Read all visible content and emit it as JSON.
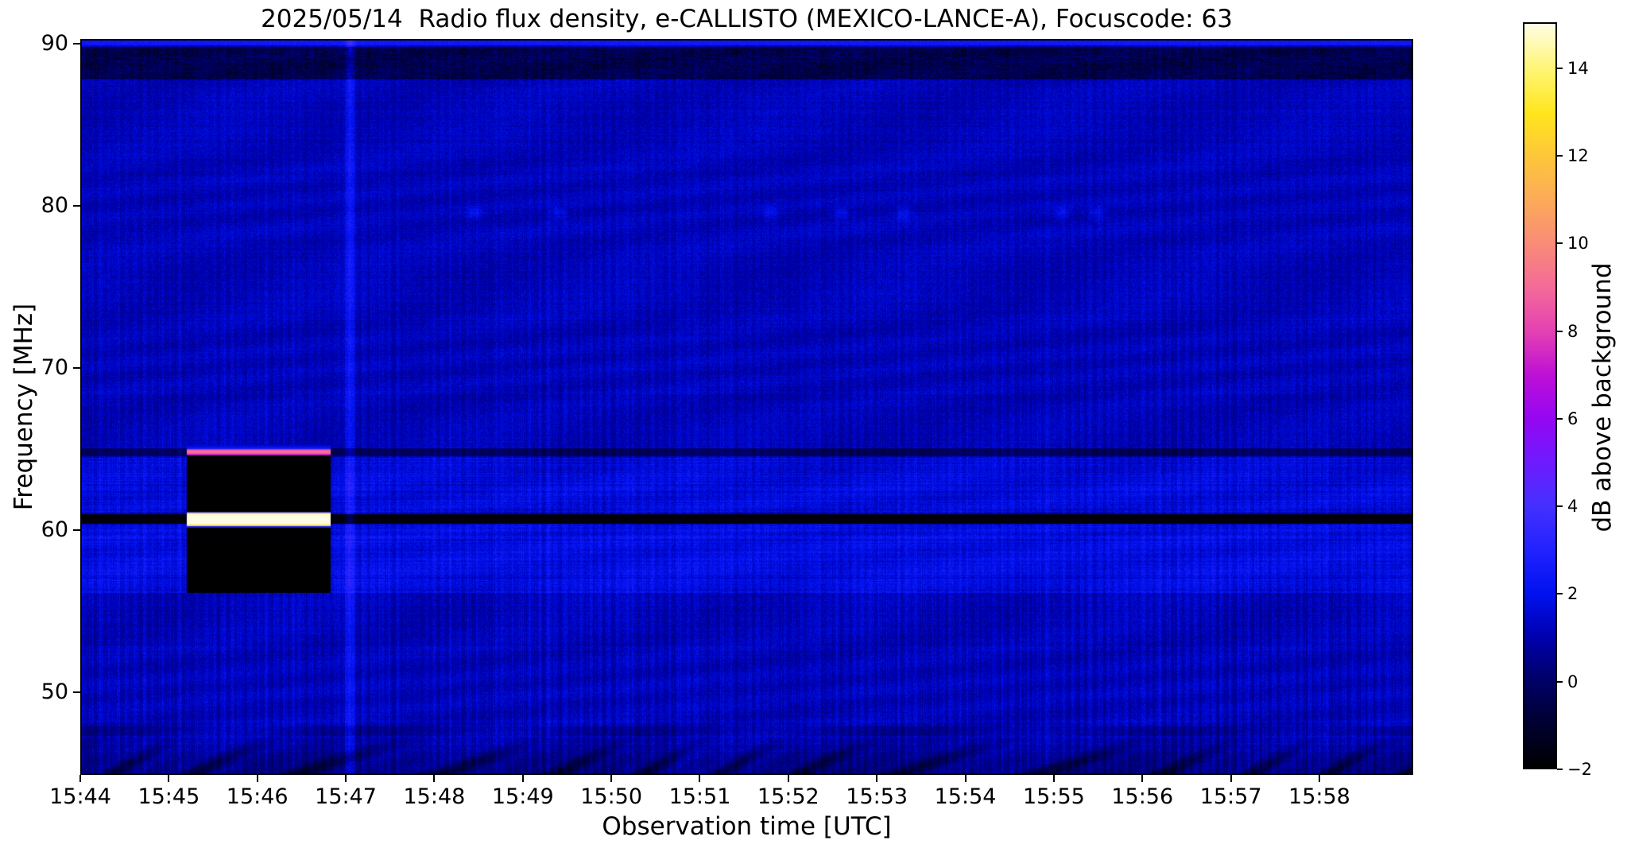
{
  "chart_data": {
    "type": "heatmap",
    "subtype": "radio-spectrogram",
    "title": "2025/05/14  Radio flux density, e-CALLISTO (MEXICO-LANCE-A), Focuscode: 63",
    "date": "2025/05/14",
    "instrument": "e-CALLISTO (MEXICO-LANCE-A)",
    "focuscode": "63",
    "xlabel": "Observation time [UTC]",
    "ylabel": "Frequency [MHz]",
    "x_ticks": [
      "15:44",
      "15:45",
      "15:46",
      "15:47",
      "15:48",
      "15:49",
      "15:50",
      "15:51",
      "15:52",
      "15:53",
      "15:54",
      "15:55",
      "15:56",
      "15:57",
      "15:58"
    ],
    "x_tick_minutes": [
      0,
      1,
      2,
      3,
      4,
      5,
      6,
      7,
      8,
      9,
      10,
      11,
      12,
      13,
      14
    ],
    "x_range_minutes_after_1544": [
      0,
      15.06
    ],
    "y_ticks_mhz": [
      90,
      80,
      70,
      60,
      50
    ],
    "y_range_mhz": [
      44.9,
      90.3
    ],
    "grid": false,
    "background_mean_db": 1.15,
    "colorbar": {
      "label": "dB above background",
      "tick_labels": [
        "14",
        "12",
        "10",
        "8",
        "6",
        "4",
        "2",
        "0",
        "−2"
      ],
      "tick_values": [
        14,
        12,
        10,
        8,
        6,
        4,
        2,
        0,
        -2
      ],
      "range_db": [
        -2,
        15.05
      ],
      "colormap": "gnuplot2",
      "stops": [
        [
          -2,
          "#000000"
        ],
        [
          -1,
          "#000030"
        ],
        [
          0,
          "#000066"
        ],
        [
          1,
          "#0000AE"
        ],
        [
          2,
          "#0012F0"
        ],
        [
          3,
          "#2222FF"
        ],
        [
          4,
          "#4430FF"
        ],
        [
          5,
          "#6E1BFF"
        ],
        [
          6,
          "#9507F2"
        ],
        [
          7,
          "#BE10D6"
        ],
        [
          8,
          "#E441B2"
        ],
        [
          9,
          "#F46A99"
        ],
        [
          10,
          "#F98B77"
        ],
        [
          11,
          "#FCAA59"
        ],
        [
          12,
          "#FEC63A"
        ],
        [
          13,
          "#FFE51D"
        ],
        [
          14,
          "#FFF573"
        ],
        [
          15.05,
          "#FFFDE4"
        ]
      ]
    },
    "features": {
      "calibration_block": {
        "t_min": 1.19,
        "t_max": 2.82,
        "f_min_mhz": 56.08,
        "f_max_mhz": 64.62,
        "level_db": -2
      },
      "bright_line_pink": {
        "t_min": 1.19,
        "t_max": 2.82,
        "f_min_mhz": 64.62,
        "f_max_mhz": 65.01,
        "level_db": 9
      },
      "bright_line_white": {
        "t_min": 1.19,
        "t_max": 2.82,
        "f_min_mhz": 60.28,
        "f_max_mhz": 60.95,
        "level_db": 15
      },
      "blackout_band": {
        "f_min_mhz": 60.35,
        "f_max_mhz": 60.94,
        "level_db": -1.85
      },
      "dark_line_band": {
        "f_min_mhz": 64.55,
        "f_max_mhz": 65.05,
        "delta_db": -1.35
      },
      "bright_band_upper": {
        "f_min_mhz": 61.05,
        "f_max_mhz": 64.45,
        "delta_db": 0.5
      },
      "bright_band_lower": {
        "f_min_mhz": 56.1,
        "f_max_mhz": 60.33,
        "delta_db": 0.65
      },
      "dark_mottled_band": {
        "f_min_mhz": 87.9,
        "f_max_mhz": 89.9,
        "delta_db": -1.5
      },
      "top_edge_bright_mhz": 90.0,
      "vertical_streak": {
        "t_min_at": 3.04,
        "sigma_min": 0.035,
        "delta_db": 1.5
      },
      "low_dark_streak": {
        "f_min_mhz": 47.2,
        "f_max_mhz": 47.85,
        "delta_db": -0.55
      },
      "bottom_interference": {
        "below_mhz": 47.3,
        "max_delta_db": -1.9
      },
      "faint_patches": {
        "f_mhz": 79.6,
        "t_minutes": [
          4.45,
          5.4,
          7.8,
          8.6,
          9.3,
          11.1,
          11.5
        ],
        "delta_db": 0.95
      }
    }
  }
}
